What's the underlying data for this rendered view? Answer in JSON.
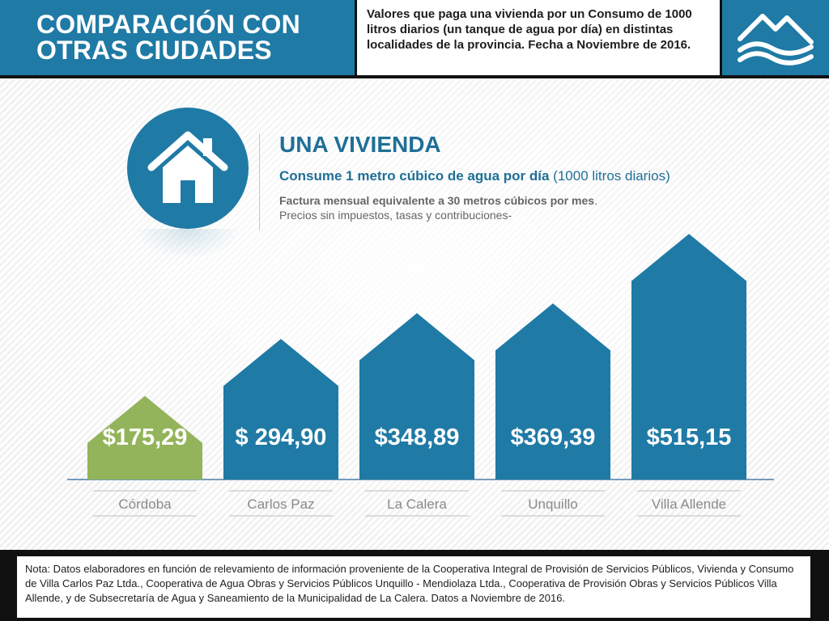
{
  "header": {
    "title": "COMPARACIÓN CON OTRAS CIUDADES",
    "description": "Valores que paga una vivienda por un Consumo de 1000 litros diarios (un tanque de agua por día) en distintas localidades de la provincia. Fecha a Noviembre de 2016.",
    "logo_icon": "mountains-water-logo-icon"
  },
  "main": {
    "house_icon": "house-icon",
    "heading": "UNA VIVIENDA",
    "subtitle_bold": "Consume 1 metro cúbico de agua por día",
    "subtitle_rest": " (1000 litros diarios)",
    "info_bold": "Factura mensual equivalente a 30 metros cúbicos por mes",
    "info_rest": ".",
    "info_line2": "Precios sin impuestos, tasas y contribuciones-"
  },
  "chart_data": {
    "type": "bar",
    "title": "",
    "xlabel": "",
    "ylabel": "",
    "categories": [
      "Córdoba",
      "Carlos Paz",
      "La Calera",
      "Unquillo",
      "Villa Allende"
    ],
    "values": [
      175.29,
      294.9,
      348.89,
      369.39,
      515.15
    ],
    "value_labels": [
      "$175,29",
      "$ 294,90",
      "$348,89",
      "$369,39",
      "$515,15"
    ],
    "colors": [
      "#93b45a",
      "#1f7aa5",
      "#1f7aa5",
      "#1f7aa5",
      "#1f7aa5"
    ],
    "bar_shape": "house",
    "grid": false,
    "legend": "none"
  },
  "footer": {
    "note": "Nota: Datos elaboradores en función de relevamiento de información proveniente de la Cooperativa Integral de Provisión de Servicios Públicos, Vivienda y Consumo de Villa Carlos Paz Ltda., Cooperativa de Agua Obras y Servicios  Públicos  Unquillo - Mendiolaza Ltda., Cooperativa de Provisión Obras y Servicios Públicos Villa Allende,  y de Subsecretaría de Agua y Saneamiento de la Municipalidad de La Calera. Datos a Noviembre de 2016."
  }
}
